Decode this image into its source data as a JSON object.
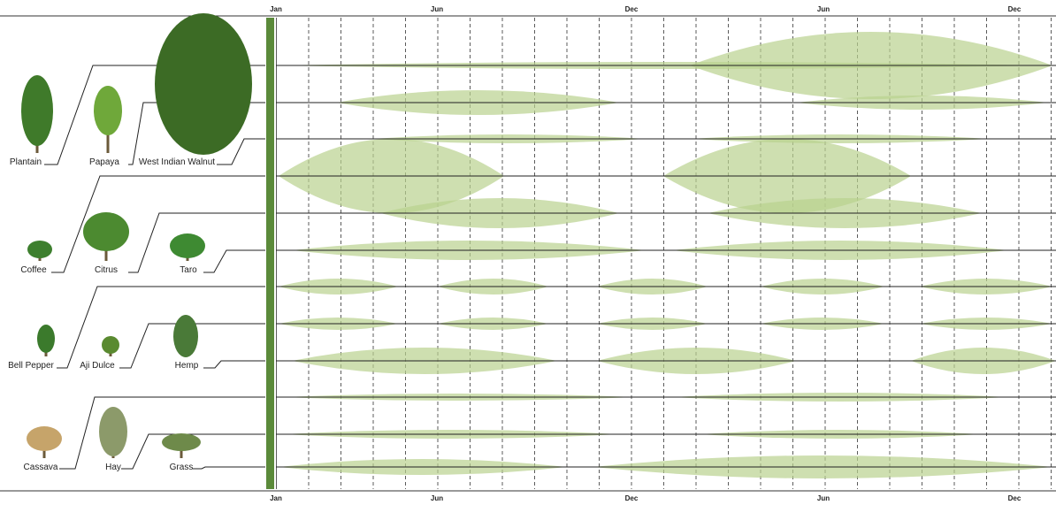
{
  "timeline": {
    "top_labels": [
      "Jan",
      "Jun",
      "Dec",
      "Jun",
      "Dec"
    ],
    "bottom_labels": [
      "Jan",
      "Jun",
      "Dec",
      "Jun",
      "Dec"
    ]
  },
  "plants": [
    {
      "name": "Plantain"
    },
    {
      "name": "Papaya"
    },
    {
      "name": "West Indian Walnut"
    },
    {
      "name": "Coffee"
    },
    {
      "name": "Citrus"
    },
    {
      "name": "Taro"
    },
    {
      "name": "Bell Pepper"
    },
    {
      "name": "Aji Dulce"
    },
    {
      "name": "Hemp"
    },
    {
      "name": "Cassava"
    },
    {
      "name": "Hay"
    },
    {
      "name": "Grass"
    }
  ]
}
